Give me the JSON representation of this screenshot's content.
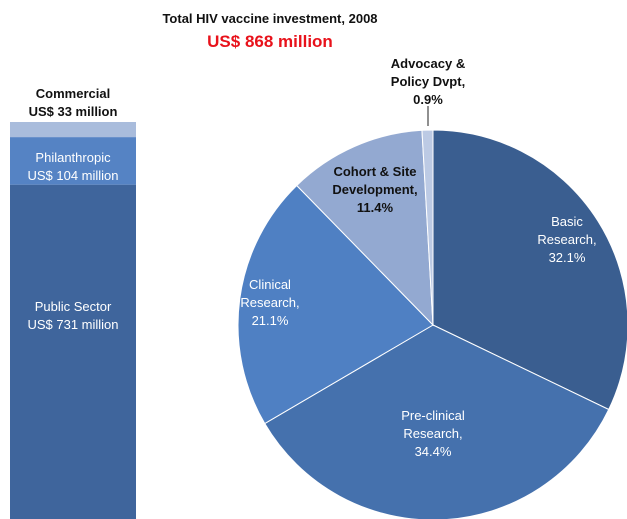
{
  "title": "Total HIV vaccine investment, 2008",
  "subtitle": "US$ 868 million",
  "chart_data": [
    {
      "type": "stacked-bar",
      "series": [
        {
          "name": "Public Sector",
          "color": "#3f659c",
          "values": [
            731
          ],
          "value_labels": [
            "US$ 731 million"
          ]
        },
        {
          "name": "Philanthropic",
          "color": "#5583c4",
          "values": [
            104
          ],
          "value_labels": [
            "US$ 104 million"
          ]
        },
        {
          "name": "Commercial",
          "color": "#a9bcdc",
          "values": [
            33
          ],
          "value_labels": [
            "US$ 33 million"
          ]
        }
      ]
    },
    {
      "type": "pie",
      "categories": [
        "Basic Research,",
        "Pre-clinical Research,",
        "Clinical Research,",
        "Cohort & Site Development,",
        "Advocacy & Policy Dvpt,"
      ],
      "values": [
        32.1,
        34.4,
        21.1,
        11.4,
        0.9
      ],
      "value_labels": [
        "32.1%",
        "34.4%",
        "21.1%",
        "11.4%",
        "0.9%"
      ],
      "colors": [
        "#3a5e90",
        "#4571ad",
        "#4f80c3",
        "#93a9d1",
        "#bccae4"
      ]
    }
  ]
}
